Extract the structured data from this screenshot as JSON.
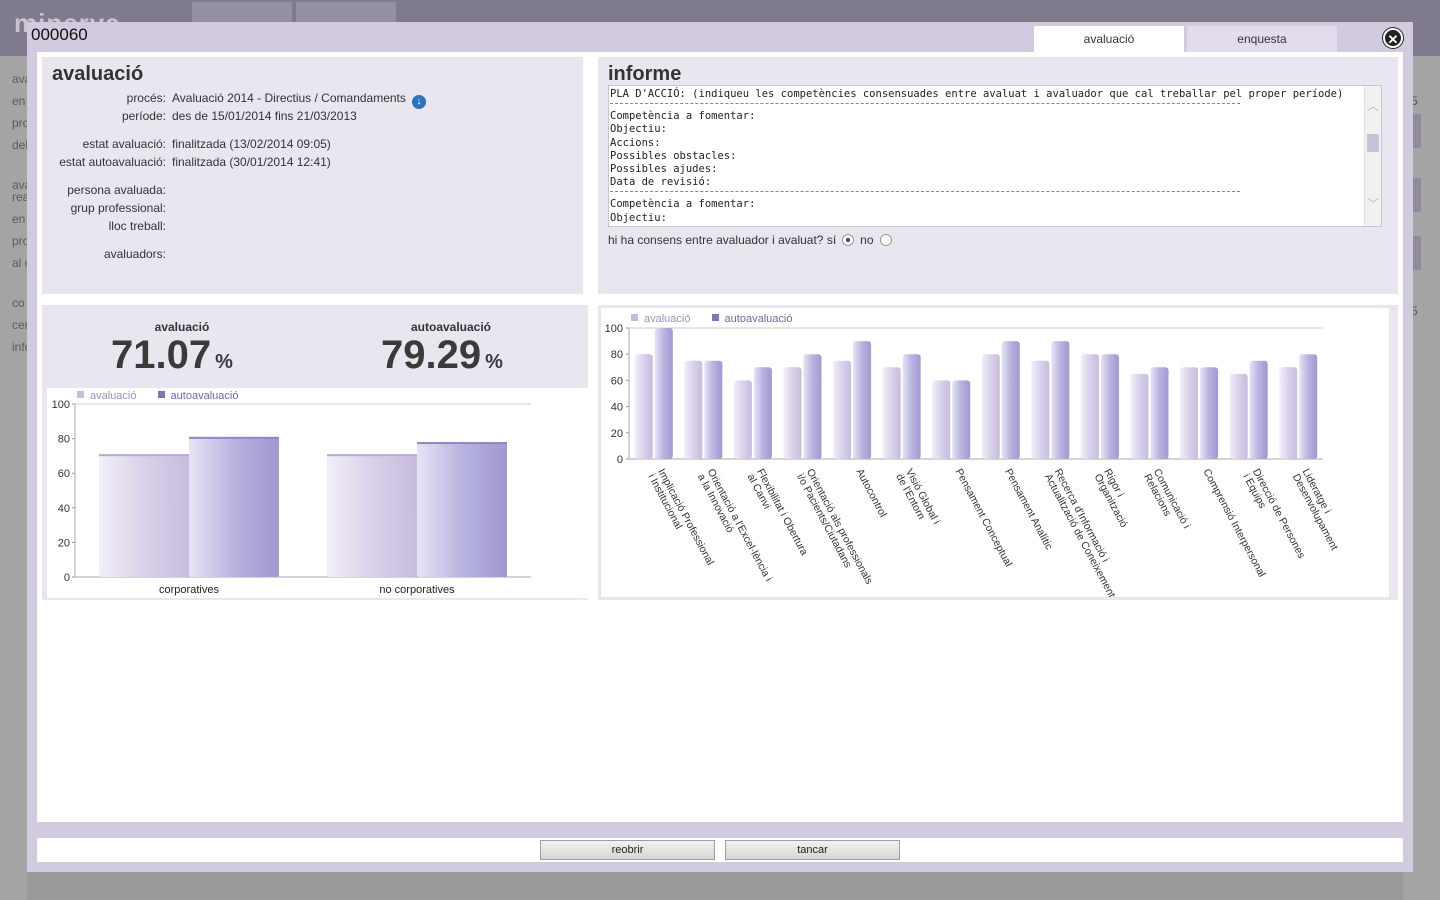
{
  "background": {
    "logo": "minerva",
    "side_items": [
      "ava",
      "en",
      "pro",
      "del",
      "ava",
      "rea",
      "en",
      "pro",
      "al c",
      "co",
      "cer",
      "info"
    ],
    "right_items": [
      "5",
      "5"
    ]
  },
  "modal": {
    "id": "000060",
    "tabs": [
      {
        "label": "avaluació",
        "active": true
      },
      {
        "label": "enquesta",
        "active": false
      }
    ],
    "close_icon": "close-icon"
  },
  "evaluation": {
    "title": "avaluació",
    "fields": [
      {
        "label": "procés:",
        "value": "Avaluació 2014 - Directius / Comandaments"
      },
      {
        "label": "període:",
        "value": "des de 15/01/2014 fins 21/03/2013"
      },
      {
        "label": "estat avaluació:",
        "value": "finalitzada (13/02/2014 09:05)"
      },
      {
        "label": "estat autoavaluació:",
        "value": "finalitzada (30/01/2014 12:41)"
      },
      {
        "label": "persona avaluada:",
        "value": ""
      },
      {
        "label": "grup professional:",
        "value": ""
      },
      {
        "label": "lloc treball:",
        "value": ""
      },
      {
        "label": "avaluadors:",
        "value": ""
      }
    ]
  },
  "report": {
    "title": "informe",
    "header": "PLA D'ACCIÓ: (indiqueu les competències consensuades entre avaluat i avaluador que cal treballar pel proper període)",
    "block_lines": [
      "Competència a fomentar:",
      "Objectiu:",
      "Accions:",
      "Possibles obstacles:",
      "Possibles ajudes:",
      "Data de revisió:"
    ],
    "block2_lines": [
      "Competència a fomentar:",
      "Objectiu:"
    ],
    "consens_question": "hi ha consens entre avaluador i avaluat? sí",
    "consens_no": "no",
    "consens_value": "sí"
  },
  "scores": {
    "evaluation_label": "avaluació",
    "evaluation_value": "71.07",
    "self_label": "autoavaluació",
    "self_value": "79.29",
    "unit": "%"
  },
  "colors": {
    "series_eval": "#c7bcdd",
    "series_self": "#9f99d0",
    "legend_eval_text": "#9b92c2",
    "legend_self_text": "#6d68a8"
  },
  "chart_data": [
    {
      "type": "bar",
      "categories": [
        "corporatives",
        "no corporatives"
      ],
      "series": [
        {
          "name": "avaluació",
          "values": [
            71,
            71
          ]
        },
        {
          "name": "autoavaluació",
          "values": [
            81,
            78
          ]
        }
      ],
      "ylim": [
        0,
        100
      ],
      "yticks": [
        0,
        20,
        40,
        60,
        80,
        100
      ],
      "legend": "top-left"
    },
    {
      "type": "bar",
      "categories": [
        "Implicació Professional i Institucional",
        "Orientació a l'Excel·lència i a la Innovació",
        "Flexibilitat i Obertura al Canvi",
        "Orientació als professionals i/o Pacients/Ciutadans",
        "Autocontrol",
        "Visió Global i de l'Entorn",
        "Pensament Conceptual",
        "Pensament Analític",
        "Recerca d'Informació i Actualització de Coneixements",
        "Rigor i Organització",
        "Comunicació i Relacions",
        "Comprensió Interpersonal",
        "Direcció de Persones i Equips",
        "Lideratge i Desenvolupament"
      ],
      "series": [
        {
          "name": "avaluació",
          "values": [
            80,
            75,
            60,
            70,
            75,
            70,
            60,
            80,
            75,
            80,
            65,
            70,
            65,
            70
          ]
        },
        {
          "name": "autoavaluació",
          "values": [
            100,
            75,
            70,
            80,
            90,
            80,
            60,
            90,
            90,
            80,
            70,
            70,
            75,
            80
          ]
        }
      ],
      "ylim": [
        0,
        100
      ],
      "yticks": [
        0,
        20,
        40,
        60,
        80,
        100
      ],
      "legend": "top-left"
    }
  ],
  "footer": {
    "reopen_label": "reobrir",
    "close_label": "tancar"
  }
}
